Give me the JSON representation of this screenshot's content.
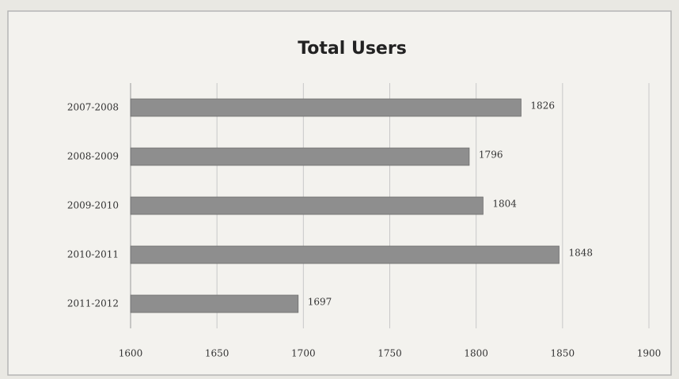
{
  "chart_data": {
    "type": "bar",
    "title": "Total Users",
    "categories": [
      "2007-2008",
      "2008-2009",
      "2009-2010",
      "2010-2011",
      "2011-2012"
    ],
    "values": [
      1826,
      1796,
      1804,
      1848,
      1697
    ],
    "color": "#8e8e8e",
    "xlim": [
      1600,
      1900
    ],
    "xticks": [
      1600,
      1650,
      1700,
      1750,
      1800,
      1850,
      1900
    ],
    "grid": true
  }
}
